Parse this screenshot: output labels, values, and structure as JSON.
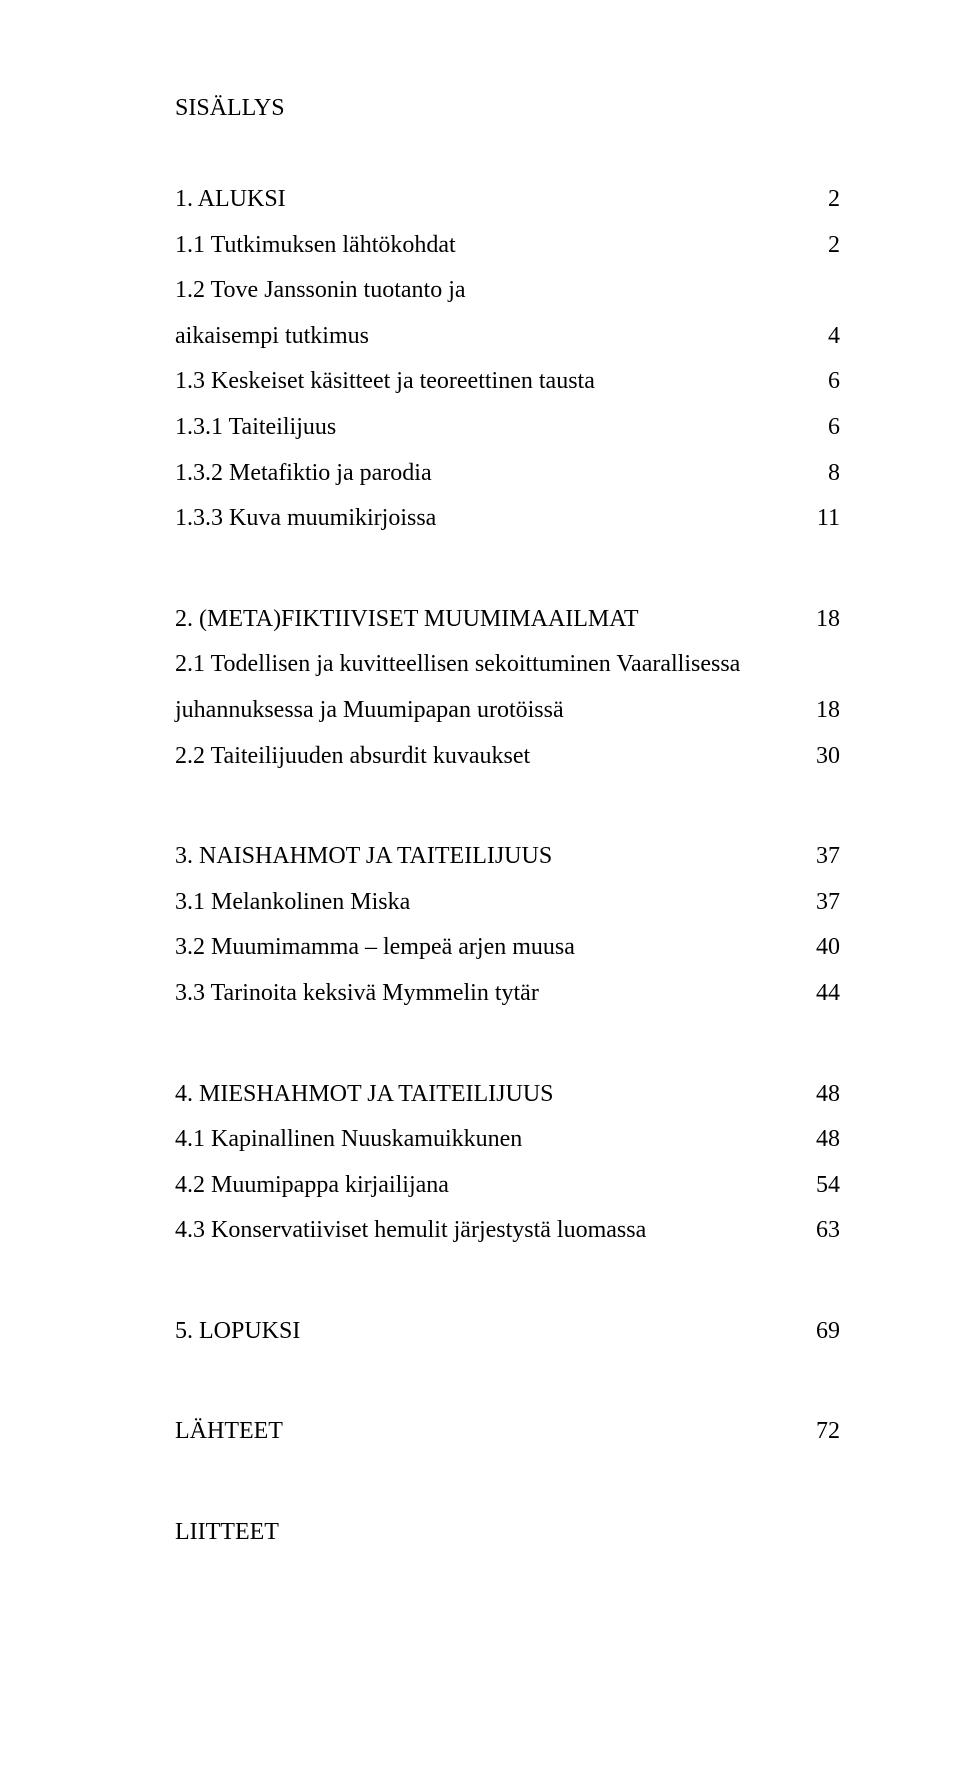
{
  "title": "SISÄLLYS",
  "sections": [
    {
      "items": [
        {
          "label": "1. ALUKSI",
          "page": "2"
        },
        {
          "label": "1.1 Tutkimuksen lähtökohdat",
          "page": "2"
        },
        {
          "label": "1.2 Tove Janssonin tuotanto ja",
          "page": null
        },
        {
          "label": "aikaisempi tutkimus",
          "page": "4"
        },
        {
          "label": "1.3 Keskeiset käsitteet ja teoreettinen tausta",
          "page": "6"
        },
        {
          "label": "1.3.1 Taiteilijuus",
          "page": "6"
        },
        {
          "label": "1.3.2 Metafiktio ja parodia",
          "page": "8"
        },
        {
          "label": "1.3.3 Kuva muumikirjoissa",
          "page": "11"
        }
      ]
    },
    {
      "items": [
        {
          "label": "2. (META)FIKTIIVISET MUUMIMAAILMAT",
          "page": "18"
        },
        {
          "label": "2.1 Todellisen ja kuvitteellisen sekoittuminen Vaarallisessa",
          "page": null
        },
        {
          "label": "juhannuksessa ja Muumipapan urotöissä",
          "page": "18"
        },
        {
          "label": "2.2 Taiteilijuuden absurdit kuvaukset",
          "page": "30"
        }
      ]
    },
    {
      "items": [
        {
          "label": "3. NAISHAHMOT JA TAITEILIJUUS",
          "page": "37"
        },
        {
          "label": "3.1 Melankolinen Miska",
          "page": "37"
        },
        {
          "label": "3.2 Muumimamma – lempeä arjen muusa",
          "page": "40"
        },
        {
          "label": "3.3 Tarinoita keksivä Mymmelin tytär",
          "page": "44"
        }
      ]
    },
    {
      "items": [
        {
          "label": "4. MIESHAHMOT JA TAITEILIJUUS",
          "page": "48"
        },
        {
          "label": "4.1 Kapinallinen Nuuskamuikkunen",
          "page": "48"
        },
        {
          "label": "4.2 Muumipappa kirjailijana",
          "page": "54"
        },
        {
          "label": "4.3 Konservatiiviset hemulit järjestystä luomassa",
          "page": "63"
        }
      ]
    },
    {
      "items": [
        {
          "label": "5. LOPUKSI",
          "page": "69"
        }
      ]
    },
    {
      "items": [
        {
          "label": "LÄHTEET",
          "page": "72"
        }
      ]
    },
    {
      "items": [
        {
          "label": "LIITTEET",
          "page": null
        }
      ]
    }
  ]
}
